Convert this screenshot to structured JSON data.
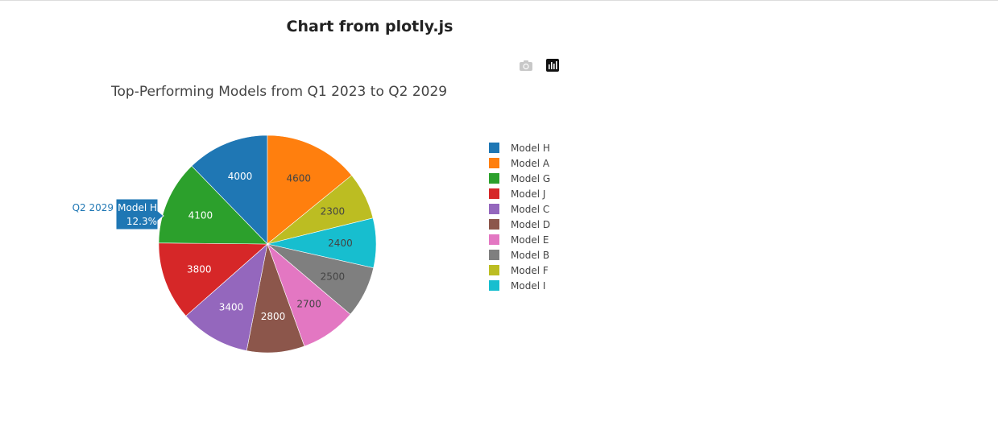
{
  "page": {
    "title": "Chart from plotly.js"
  },
  "modebar": {
    "download_icon": "camera-icon",
    "logo_icon": "plotly-logo-icon"
  },
  "chart_data": {
    "type": "pie",
    "title": "Top-Performing Models from Q1 2023 to Q2 2029",
    "labels": [
      "Model H",
      "Model A",
      "Model G",
      "Model J",
      "Model C",
      "Model D",
      "Model E",
      "Model B",
      "Model F",
      "Model I"
    ],
    "slices": [
      {
        "label": "Model H",
        "value": 4000,
        "color": "#1f77b4"
      },
      {
        "label": "Model A",
        "value": 4600,
        "color": "#ff7f0e"
      },
      {
        "label": "Model F",
        "value": 2300,
        "color": "#bcbd22"
      },
      {
        "label": "Model I",
        "value": 2400,
        "color": "#17becf"
      },
      {
        "label": "Model B",
        "value": 2500,
        "color": "#7f7f7f"
      },
      {
        "label": "Model E",
        "value": 2700,
        "color": "#e377c2"
      },
      {
        "label": "Model D",
        "value": 2800,
        "color": "#8c564b"
      },
      {
        "label": "Model C",
        "value": 3400,
        "color": "#9467bd"
      },
      {
        "label": "Model J",
        "value": 3800,
        "color": "#d62728"
      },
      {
        "label": "Model G",
        "value": 4100,
        "color": "#2ca02c"
      }
    ],
    "legend": [
      {
        "label": "Model H",
        "color": "#1f77b4"
      },
      {
        "label": "Model A",
        "color": "#ff7f0e"
      },
      {
        "label": "Model G",
        "color": "#2ca02c"
      },
      {
        "label": "Model J",
        "color": "#d62728"
      },
      {
        "label": "Model C",
        "color": "#9467bd"
      },
      {
        "label": "Model D",
        "color": "#8c564b"
      },
      {
        "label": "Model E",
        "color": "#e377c2"
      },
      {
        "label": "Model B",
        "color": "#7f7f7f"
      },
      {
        "label": "Model F",
        "color": "#bcbd22"
      },
      {
        "label": "Model I",
        "color": "#17becf"
      }
    ],
    "legend_position": "right",
    "hover": {
      "slice": "Model H",
      "series": "Q2 2029",
      "label": "Model H",
      "percent": "12.3%"
    }
  }
}
